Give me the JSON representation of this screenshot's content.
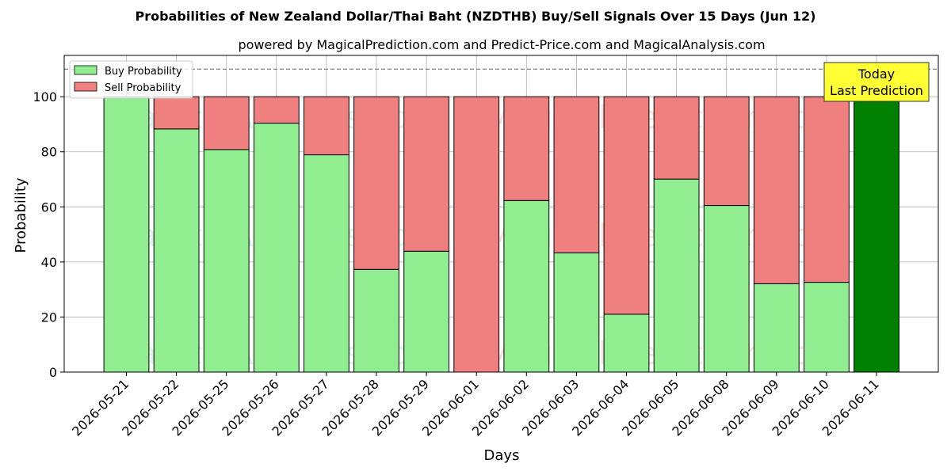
{
  "chart_data": {
    "type": "bar",
    "stacked": true,
    "title": "Probabilities of New Zealand Dollar/Thai Baht (NZDTHB) Buy/Sell Signals Over 15 Days (Jun 12)",
    "subtitle": "powered by MagicalPrediction.com and Predict-Price.com and MagicalAnalysis.com",
    "xlabel": "Days",
    "ylabel": "Probability",
    "ylim": [
      0,
      115
    ],
    "yticks": [
      0,
      20,
      40,
      60,
      80,
      100
    ],
    "grid": true,
    "legend_position": "top-left",
    "reference_line": 110,
    "categories": [
      "2026-05-21",
      "2026-05-22",
      "2026-05-25",
      "2026-05-26",
      "2026-05-27",
      "2026-05-28",
      "2026-05-29",
      "2026-06-01",
      "2026-06-02",
      "2026-06-03",
      "2026-06-04",
      "2026-06-05",
      "2026-06-08",
      "2026-06-09",
      "2026-06-10",
      "2026-06-11"
    ],
    "series": [
      {
        "name": "Buy Probability",
        "color": "#90ee90",
        "values": [
          100,
          88.3,
          80.8,
          90.4,
          78.9,
          37.3,
          43.9,
          0,
          62.3,
          43.3,
          21.0,
          70.1,
          60.5,
          32.1,
          32.6,
          100
        ]
      },
      {
        "name": "Sell Probability",
        "color": "#f08080",
        "values": [
          0,
          11.7,
          19.2,
          9.6,
          21.1,
          62.7,
          56.1,
          100,
          37.7,
          56.7,
          79.0,
          29.9,
          39.5,
          67.9,
          67.4,
          0
        ]
      }
    ],
    "highlight": {
      "category": "2026-06-11",
      "color": "#008000"
    },
    "annotation": {
      "lines": [
        "Today",
        "Last Prediction"
      ],
      "background": "#ffff33"
    },
    "watermarks": [
      "MagicalAnalysis.com",
      "MagicalPrediction.com"
    ]
  }
}
